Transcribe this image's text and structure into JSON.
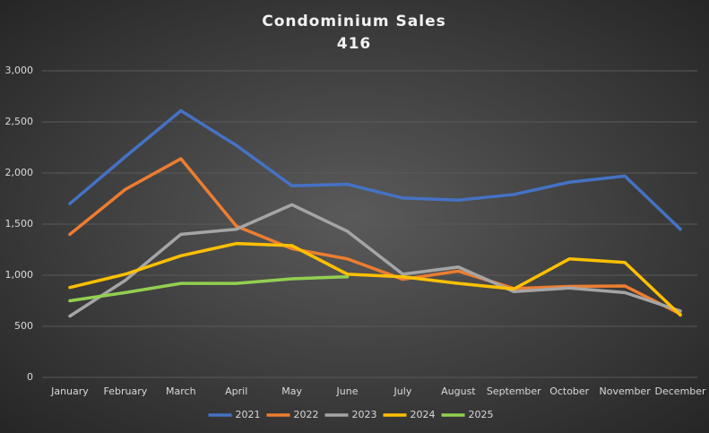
{
  "chart_data": {
    "type": "line",
    "title": "Condominium Sales",
    "subtitle": "416",
    "categories": [
      "January",
      "February",
      "March",
      "April",
      "May",
      "June",
      "July",
      "August",
      "September",
      "October",
      "November",
      "December"
    ],
    "ylim": [
      0,
      3000
    ],
    "yticks": [
      0,
      500,
      {
        "value": 1000,
        "label": "1,000"
      },
      {
        "value": 1500,
        "label": "1,500"
      },
      {
        "value": 2000,
        "label": "2,000"
      },
      {
        "value": 2500,
        "label": "2,500"
      },
      {
        "value": 3000,
        "label": "3,000"
      }
    ],
    "grid": true,
    "legend": "bottom",
    "series": [
      {
        "name": "2021",
        "color": "#4472c4",
        "values": [
          1700,
          2160,
          2610,
          2270,
          1875,
          1890,
          1755,
          1735,
          1790,
          1910,
          1970,
          1450
        ]
      },
      {
        "name": "2022",
        "color": "#ed7d31",
        "values": [
          1400,
          1840,
          2140,
          1480,
          1260,
          1160,
          960,
          1040,
          870,
          890,
          895,
          620
        ]
      },
      {
        "name": "2023",
        "color": "#a5a5a5",
        "values": [
          600,
          950,
          1400,
          1450,
          1690,
          1430,
          1010,
          1080,
          840,
          875,
          830,
          650
        ]
      },
      {
        "name": "2024",
        "color": "#ffc000",
        "values": [
          880,
          1010,
          1190,
          1310,
          1290,
          1010,
          985,
          920,
          865,
          1160,
          1125,
          610
        ]
      },
      {
        "name": "2025",
        "color": "#92d050",
        "values": [
          750,
          830,
          920,
          920,
          965,
          985,
          null,
          null,
          null,
          null,
          null,
          null
        ]
      }
    ]
  }
}
